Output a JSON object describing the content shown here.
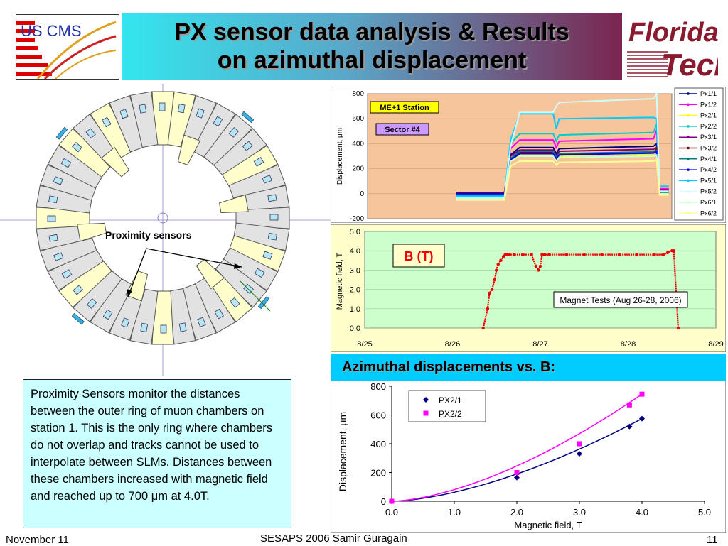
{
  "header": {
    "title_line1": "PX sensor data analysis & Results",
    "title_line2": "on azimuthal displacement",
    "logo_left_text": "US CMS",
    "logo_right_line1": "Florida",
    "logo_right_line2": "Tech"
  },
  "diagram": {
    "proximity_label": "Proximity sensors"
  },
  "note": {
    "text_before_unit": "Proximity Sensors monitor the distances between the outer ring of muon chambers on station 1. This is the only ring where chambers do not overlap and tracks cannot be used to interpolate between SLMs. Distances between these chambers increased with magnetic field and reached up to 700 ",
    "unit": "μm",
    "text_after_unit": " at 4.0T."
  },
  "footer": {
    "date": "November 11",
    "conference": "SESAPS 2006   Samir Guragain",
    "page": "11"
  },
  "colors": {
    "title_gradient_left": "#33e6ee",
    "title_gradient_right": "#7a2550",
    "chart1_bg": "#f7c59b",
    "chart2_bg": "#ccffcc",
    "chart3_title_bg": "#00ccff",
    "note_bg": "#ccffff",
    "b_field_series": "#ee0000"
  },
  "chart_data": [
    {
      "type": "line",
      "ylabel": "Displacement, μm",
      "ylim": [
        -200,
        800
      ],
      "yticks": [
        "800",
        "600",
        "400",
        "200",
        "0",
        "-200"
      ],
      "annotations": [
        "ME+1 Station",
        "Sector #4"
      ],
      "legend_position": "right",
      "grid": true,
      "phases": [
        "before ramp",
        "ramp",
        "full field",
        "dip",
        "full field",
        "ramp down"
      ],
      "series": [
        {
          "name": "Px1/1",
          "color": "#000080",
          "values": [
            10,
            10,
            310,
            370,
            320,
            360,
            380,
            400,
            30
          ]
        },
        {
          "name": "Px1/2",
          "color": "#ff00ff",
          "values": [
            10,
            10,
            360,
            430,
            370,
            420,
            440,
            510,
            40
          ]
        },
        {
          "name": "Px2/1",
          "color": "#ffff00",
          "values": [
            -20,
            -20,
            260,
            310,
            270,
            300,
            320,
            350,
            10
          ]
        },
        {
          "name": "Px2/2",
          "color": "#00cccc",
          "values": [
            -10,
            -10,
            400,
            480,
            420,
            470,
            490,
            560,
            20
          ]
        },
        {
          "name": "Px3/1",
          "color": "#800080",
          "values": [
            0,
            0,
            300,
            350,
            300,
            340,
            355,
            370,
            20
          ]
        },
        {
          "name": "Px3/2",
          "color": "#800000",
          "values": [
            10,
            10,
            280,
            330,
            290,
            320,
            330,
            360,
            30
          ]
        },
        {
          "name": "Px4/1",
          "color": "#008080",
          "values": [
            -10,
            -10,
            280,
            340,
            290,
            320,
            335,
            345,
            10
          ]
        },
        {
          "name": "Px4/2",
          "color": "#0000ff",
          "values": [
            0,
            0,
            270,
            320,
            280,
            310,
            325,
            340,
            20
          ]
        },
        {
          "name": "Px5/1",
          "color": "#00ccff",
          "values": [
            -20,
            -20,
            430,
            640,
            520,
            600,
            610,
            600,
            60
          ]
        },
        {
          "name": "Px5/2",
          "color": "#ccffff",
          "values": [
            -30,
            -30,
            380,
            650,
            700,
            730,
            760,
            800,
            20
          ]
        },
        {
          "name": "Px6/1",
          "color": "#ccffcc",
          "values": [
            -40,
            -40,
            260,
            300,
            260,
            290,
            300,
            310,
            0
          ]
        },
        {
          "name": "Px6/2",
          "color": "#ffff99",
          "values": [
            -50,
            -50,
            220,
            260,
            230,
            250,
            260,
            270,
            -10
          ]
        }
      ]
    },
    {
      "type": "scatter",
      "ylabel": "Magnetic field, T",
      "ylim": [
        0,
        5
      ],
      "yticks": [
        "5.0",
        "4.0",
        "3.0",
        "2.0",
        "1.0",
        "0.0"
      ],
      "xticks": [
        "8/25",
        "8/26",
        "8/27",
        "8/28",
        "8/29"
      ],
      "annotation_big": "B (T)",
      "annotation_box": "Magnet Tests (Aug 26-28, 2006)",
      "grid": true,
      "series": [
        {
          "name": "B (T)",
          "color": "#ee0000",
          "x": [
            1.35,
            1.4,
            1.42,
            1.45,
            1.48,
            1.5,
            1.52,
            1.55,
            1.58,
            1.6,
            1.62,
            1.65,
            1.7,
            1.8,
            1.9,
            1.95,
            1.98,
            2.0,
            2.02,
            2.05,
            2.1,
            2.3,
            2.5,
            2.7,
            2.9,
            3.1,
            3.3,
            3.4,
            3.45,
            3.5,
            3.52,
            3.57
          ],
          "y": [
            0,
            1.0,
            1.8,
            2.0,
            2.5,
            3.0,
            3.3,
            3.5,
            3.7,
            3.8,
            3.8,
            3.8,
            3.8,
            3.8,
            3.8,
            3.2,
            3.0,
            3.2,
            3.8,
            3.8,
            3.8,
            3.8,
            3.8,
            3.8,
            3.8,
            3.8,
            3.8,
            3.8,
            3.9,
            4.0,
            4.0,
            0
          ]
        }
      ]
    },
    {
      "type": "line",
      "title": "Azimuthal displacements vs. B:",
      "xlabel": "Magnetic field, T",
      "ylabel": "Displacement, μm",
      "xlim": [
        0,
        5
      ],
      "ylim": [
        0,
        800
      ],
      "xticks": [
        "0.0",
        "1.0",
        "2.0",
        "3.0",
        "4.0",
        "5.0"
      ],
      "yticks": [
        "800",
        "600",
        "400",
        "200",
        "0"
      ],
      "legend_position": "top-left",
      "series": [
        {
          "name": "PX2/1",
          "color": "#000080",
          "x": [
            0,
            2.0,
            3.0,
            3.8,
            4.0
          ],
          "y": [
            0,
            165,
            330,
            520,
            575
          ]
        },
        {
          "name": "PX2/2",
          "color": "#ff00ff",
          "x": [
            0,
            2.0,
            3.0,
            3.8,
            4.0
          ],
          "y": [
            0,
            200,
            400,
            670,
            745
          ]
        }
      ]
    }
  ]
}
